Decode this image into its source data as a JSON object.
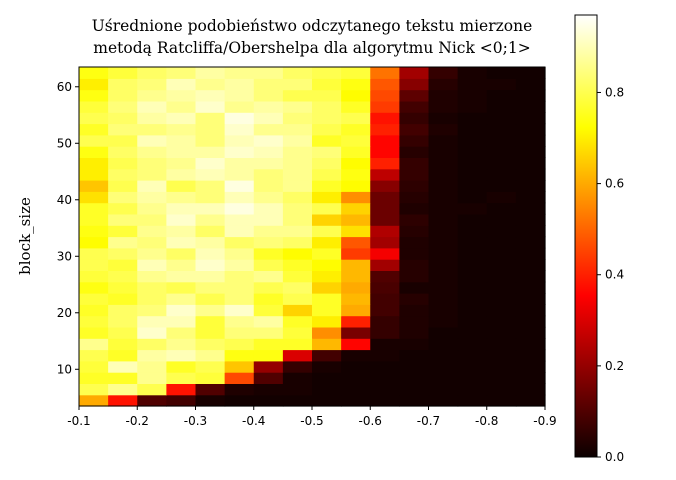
{
  "chart_data": {
    "type": "heatmap",
    "title_lines": [
      "Uśrednione podobieństwo odczytanego tekstu mierzone",
      "metodą Ratcliffa/Obershelpa dla algorytmu Nick <0;1>"
    ],
    "xlabel": "",
    "ylabel": "block_size",
    "colormap": "hot",
    "x_tick_labels": [
      "-0.1",
      "-0.2",
      "-0.3",
      "-0.4",
      "-0.5",
      "-0.6",
      "-0.7",
      "-0.8",
      "-0.9"
    ],
    "x_tick_values": [
      -0.1,
      -0.2,
      -0.3,
      -0.4,
      -0.5,
      -0.6,
      -0.7,
      -0.8,
      -0.9
    ],
    "x_range": [
      -0.1,
      -0.9
    ],
    "y_tick_labels": [
      "10",
      "20",
      "30",
      "40",
      "50",
      "60"
    ],
    "y_tick_values": [
      10,
      20,
      30,
      40,
      50,
      60
    ],
    "y_range": [
      3.5,
      63.5
    ],
    "columns_k": [
      -0.1,
      -0.15,
      -0.2,
      -0.25,
      -0.3,
      -0.35,
      -0.4,
      -0.45,
      -0.5,
      -0.55,
      -0.6,
      -0.65,
      -0.7,
      -0.75,
      -0.8,
      -0.85
    ],
    "rows_block_size_start": 3,
    "rows_block_size_step": 2,
    "colorbar": {
      "min": 0.0,
      "max": 0.97,
      "tick_labels": [
        "0.0",
        "0.2",
        "0.4",
        "0.6",
        "0.8"
      ],
      "tick_values": [
        0.0,
        0.2,
        0.4,
        0.6,
        0.8
      ]
    },
    "values_rows_bottom_to_top": [
      [
        0.6,
        0.38,
        0.1,
        0.08,
        0.02,
        0.01,
        0.01,
        0.01,
        0.01,
        0.01,
        0.01,
        0.01,
        0.01,
        0.01,
        0.01,
        0.01
      ],
      [
        0.8,
        0.86,
        0.8,
        0.38,
        0.1,
        0.03,
        0.02,
        0.02,
        0.01,
        0.01,
        0.01,
        0.01,
        0.01,
        0.01,
        0.01,
        0.01
      ],
      [
        0.76,
        0.76,
        0.86,
        0.8,
        0.78,
        0.46,
        0.1,
        0.02,
        0.01,
        0.01,
        0.01,
        0.01,
        0.01,
        0.01,
        0.01,
        0.01
      ],
      [
        0.78,
        0.9,
        0.86,
        0.76,
        0.8,
        0.64,
        0.2,
        0.06,
        0.02,
        0.01,
        0.01,
        0.01,
        0.01,
        0.01,
        0.01,
        0.01
      ],
      [
        0.8,
        0.76,
        0.88,
        0.9,
        0.86,
        0.74,
        0.74,
        0.3,
        0.08,
        0.02,
        0.02,
        0.01,
        0.01,
        0.01,
        0.01,
        0.01
      ],
      [
        0.86,
        0.78,
        0.82,
        0.86,
        0.82,
        0.8,
        0.76,
        0.76,
        0.62,
        0.36,
        0.02,
        0.02,
        0.01,
        0.01,
        0.01,
        0.01
      ],
      [
        0.76,
        0.8,
        0.92,
        0.84,
        0.78,
        0.84,
        0.84,
        0.78,
        0.56,
        0.16,
        0.06,
        0.03,
        0.01,
        0.01,
        0.01,
        0.01
      ],
      [
        0.78,
        0.82,
        0.9,
        0.9,
        0.78,
        0.86,
        0.88,
        0.76,
        0.7,
        0.4,
        0.06,
        0.03,
        0.02,
        0.01,
        0.01,
        0.01
      ],
      [
        0.76,
        0.82,
        0.84,
        0.92,
        0.86,
        0.92,
        0.78,
        0.66,
        0.76,
        0.6,
        0.08,
        0.03,
        0.02,
        0.01,
        0.01,
        0.01
      ],
      [
        0.78,
        0.76,
        0.82,
        0.86,
        0.8,
        0.84,
        0.76,
        0.8,
        0.76,
        0.62,
        0.08,
        0.04,
        0.02,
        0.01,
        0.01,
        0.01
      ],
      [
        0.74,
        0.78,
        0.82,
        0.8,
        0.84,
        0.84,
        0.8,
        0.82,
        0.66,
        0.6,
        0.09,
        0.02,
        0.02,
        0.01,
        0.01,
        0.01
      ],
      [
        0.78,
        0.8,
        0.86,
        0.88,
        0.88,
        0.84,
        0.86,
        0.78,
        0.7,
        0.62,
        0.1,
        0.04,
        0.02,
        0.01,
        0.01,
        0.01
      ],
      [
        0.8,
        0.78,
        0.9,
        0.86,
        0.92,
        0.88,
        0.8,
        0.76,
        0.72,
        0.62,
        0.22,
        0.04,
        0.02,
        0.01,
        0.01,
        0.01
      ],
      [
        0.8,
        0.82,
        0.86,
        0.82,
        0.9,
        0.86,
        0.76,
        0.72,
        0.76,
        0.44,
        0.34,
        0.03,
        0.02,
        0.01,
        0.01,
        0.01
      ],
      [
        0.72,
        0.86,
        0.84,
        0.9,
        0.88,
        0.82,
        0.84,
        0.82,
        0.7,
        0.48,
        0.22,
        0.03,
        0.02,
        0.01,
        0.01,
        0.01
      ],
      [
        0.74,
        0.78,
        0.86,
        0.88,
        0.82,
        0.9,
        0.86,
        0.86,
        0.8,
        0.68,
        0.24,
        0.04,
        0.02,
        0.01,
        0.01,
        0.01
      ],
      [
        0.76,
        0.84,
        0.84,
        0.92,
        0.86,
        0.9,
        0.9,
        0.84,
        0.66,
        0.62,
        0.14,
        0.05,
        0.02,
        0.01,
        0.01,
        0.01
      ],
      [
        0.76,
        0.8,
        0.86,
        0.9,
        0.9,
        0.94,
        0.9,
        0.84,
        0.8,
        0.66,
        0.14,
        0.03,
        0.02,
        0.02,
        0.01,
        0.01
      ],
      [
        0.68,
        0.84,
        0.88,
        0.86,
        0.84,
        0.9,
        0.86,
        0.82,
        0.7,
        0.56,
        0.14,
        0.04,
        0.02,
        0.01,
        0.02,
        0.01
      ],
      [
        0.64,
        0.8,
        0.9,
        0.8,
        0.84,
        0.94,
        0.84,
        0.86,
        0.76,
        0.72,
        0.18,
        0.05,
        0.02,
        0.01,
        0.01,
        0.01
      ],
      [
        0.7,
        0.82,
        0.84,
        0.88,
        0.9,
        0.88,
        0.84,
        0.86,
        0.8,
        0.74,
        0.26,
        0.06,
        0.02,
        0.01,
        0.01,
        0.01
      ],
      [
        0.7,
        0.8,
        0.84,
        0.86,
        0.92,
        0.88,
        0.88,
        0.86,
        0.82,
        0.72,
        0.4,
        0.06,
        0.02,
        0.01,
        0.01,
        0.01
      ],
      [
        0.74,
        0.82,
        0.86,
        0.88,
        0.88,
        0.92,
        0.9,
        0.86,
        0.84,
        0.76,
        0.36,
        0.04,
        0.02,
        0.01,
        0.01,
        0.01
      ],
      [
        0.8,
        0.8,
        0.9,
        0.88,
        0.84,
        0.9,
        0.92,
        0.88,
        0.76,
        0.78,
        0.36,
        0.06,
        0.02,
        0.01,
        0.01,
        0.01
      ],
      [
        0.76,
        0.84,
        0.84,
        0.86,
        0.84,
        0.92,
        0.86,
        0.86,
        0.8,
        0.76,
        0.4,
        0.08,
        0.03,
        0.01,
        0.01,
        0.01
      ],
      [
        0.8,
        0.82,
        0.88,
        0.9,
        0.84,
        0.94,
        0.9,
        0.84,
        0.82,
        0.8,
        0.38,
        0.06,
        0.02,
        0.01,
        0.01,
        0.01
      ],
      [
        0.78,
        0.84,
        0.9,
        0.86,
        0.92,
        0.86,
        0.88,
        0.86,
        0.82,
        0.76,
        0.44,
        0.08,
        0.03,
        0.02,
        0.01,
        0.01
      ],
      [
        0.74,
        0.82,
        0.86,
        0.88,
        0.9,
        0.88,
        0.84,
        0.8,
        0.8,
        0.72,
        0.46,
        0.12,
        0.03,
        0.02,
        0.01,
        0.01
      ],
      [
        0.7,
        0.82,
        0.84,
        0.9,
        0.86,
        0.88,
        0.84,
        0.84,
        0.78,
        0.74,
        0.48,
        0.18,
        0.04,
        0.02,
        0.02,
        0.01
      ],
      [
        0.74,
        0.78,
        0.82,
        0.84,
        0.88,
        0.86,
        0.86,
        0.82,
        0.8,
        0.78,
        0.52,
        0.22,
        0.06,
        0.02,
        0.01,
        0.01
      ]
    ]
  }
}
